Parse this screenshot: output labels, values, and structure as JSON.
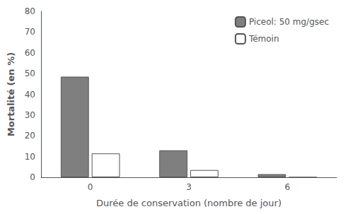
{
  "chart_data": {
    "type": "bar",
    "categories": [
      "0",
      "3",
      "6"
    ],
    "series": [
      {
        "name": "Piceol: 50 mg/gsec",
        "color": "#7f7f7f",
        "values": [
          48.5,
          13.0,
          1.5
        ]
      },
      {
        "name": "Témoin",
        "color": "#ffffff",
        "values": [
          11.5,
          3.5,
          0.0
        ]
      }
    ],
    "xlabel": "Durée de conservation (nombre de jour)",
    "ylabel": "Mortalité (en %)",
    "ylim": [
      0,
      80
    ],
    "yticks": [
      0,
      10,
      20,
      30,
      40,
      50,
      60,
      70,
      80
    ],
    "grid": false,
    "legend": "upper right"
  }
}
